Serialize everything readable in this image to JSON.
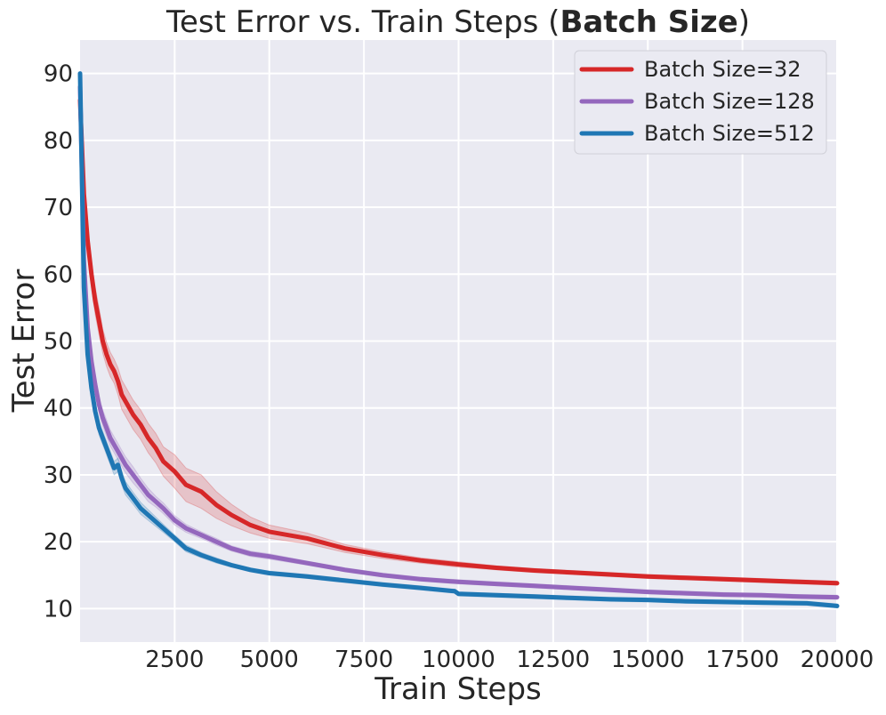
{
  "chart_data": {
    "type": "line",
    "title": "Test Error vs. Train Steps (",
    "title_bold": "Batch Size",
    "title_suffix": ")",
    "xlabel": "Train Steps",
    "ylabel": "Test Error",
    "xlim": [
      0,
      20000
    ],
    "ylim": [
      5,
      95
    ],
    "xticks": [
      2500,
      5000,
      7500,
      10000,
      12500,
      15000,
      17500,
      20000
    ],
    "xtick_labels": [
      "2500",
      "5000",
      "7500",
      "10000",
      "12500",
      "15000",
      "17500",
      "20000"
    ],
    "yticks": [
      10,
      20,
      30,
      40,
      50,
      60,
      70,
      80,
      90
    ],
    "ytick_labels": [
      "10",
      "20",
      "30",
      "40",
      "50",
      "60",
      "70",
      "80",
      "90"
    ],
    "grid": true,
    "background": "#EAEAF2",
    "legend_position": "top-right",
    "series": [
      {
        "name": "Batch Size=32",
        "color": "#D62728",
        "x": [
          0,
          100,
          200,
          300,
          400,
          500,
          600,
          700,
          800,
          900,
          1000,
          1100,
          1200,
          1400,
          1600,
          1800,
          2000,
          2200,
          2500,
          2800,
          3200,
          3600,
          4000,
          4500,
          5000,
          6000,
          7000,
          8000,
          9000,
          10000,
          11000,
          12000,
          13000,
          14000,
          15000,
          16000,
          17000,
          18000,
          19000,
          20000
        ],
        "y": [
          86,
          72,
          65,
          60,
          56,
          53,
          50,
          48,
          46.5,
          45.5,
          44,
          42,
          41,
          39,
          37.5,
          35.5,
          34,
          32,
          30.5,
          28.5,
          27.5,
          25.5,
          24,
          22.5,
          21.5,
          20.5,
          19,
          18,
          17.2,
          16.6,
          16.1,
          15.7,
          15.4,
          15.1,
          14.8,
          14.6,
          14.4,
          14.2,
          14,
          13.8
        ],
        "band": [
          0,
          1.5,
          2,
          2,
          2,
          2,
          1.8,
          1.8,
          1.8,
          1.8,
          2,
          2.2,
          2.2,
          2.2,
          2.2,
          2.2,
          2.2,
          2.2,
          2.5,
          2.5,
          2.5,
          2,
          1.6,
          1.2,
          1,
          0.8,
          0.6,
          0.5,
          0.4,
          0.4,
          0.3,
          0.3,
          0.3,
          0.3,
          0.3,
          0.3,
          0.3,
          0.3,
          0.3,
          0.3
        ]
      },
      {
        "name": "Batch Size=128",
        "color": "#9467BD",
        "x": [
          0,
          100,
          200,
          300,
          400,
          500,
          600,
          700,
          800,
          900,
          1000,
          1100,
          1200,
          1400,
          1600,
          1800,
          2000,
          2200,
          2500,
          2800,
          3200,
          3600,
          4000,
          4500,
          5000,
          6000,
          7000,
          8000,
          9000,
          10000,
          11000,
          12000,
          13000,
          14000,
          15000,
          16000,
          17000,
          18000,
          19000,
          20000
        ],
        "y": [
          88,
          62,
          52,
          47,
          43.5,
          40.5,
          38.5,
          37,
          35.5,
          34.5,
          33.5,
          32.5,
          31.5,
          30,
          28.5,
          27,
          26,
          25,
          23.2,
          22,
          21,
          20,
          19,
          18.2,
          17.8,
          16.8,
          15.8,
          15,
          14.4,
          14,
          13.7,
          13.4,
          13.1,
          12.8,
          12.5,
          12.3,
          12.1,
          12,
          11.8,
          11.7
        ],
        "band": [
          0,
          1.2,
          1.2,
          1.2,
          1.2,
          1.2,
          1.2,
          1.2,
          1.2,
          1.2,
          1.2,
          1.2,
          1.2,
          1.2,
          1,
          1,
          0.8,
          0.8,
          0.7,
          0.6,
          0.5,
          0.5,
          0.4,
          0.4,
          0.4,
          0.3,
          0.3,
          0.3,
          0.3,
          0.3,
          0.3,
          0.3,
          0.3,
          0.3,
          0.3,
          0.3,
          0.3,
          0.3,
          0.3,
          0.3
        ]
      },
      {
        "name": "Batch Size=512",
        "color": "#1F77B4",
        "x": [
          0,
          100,
          200,
          300,
          400,
          500,
          600,
          700,
          800,
          900,
          1000,
          1100,
          1200,
          1400,
          1600,
          1800,
          2000,
          2200,
          2500,
          2800,
          3200,
          3600,
          4000,
          4500,
          5000,
          6000,
          7000,
          8000,
          9000,
          9900,
          10000,
          11000,
          12000,
          13000,
          14000,
          15000,
          16000,
          17000,
          18000,
          19200,
          20000
        ],
        "y": [
          90,
          58,
          48,
          43,
          39.5,
          37,
          35.5,
          34,
          32.5,
          31,
          31.5,
          29.5,
          28,
          26.5,
          25,
          24,
          23,
          22,
          20.5,
          19,
          18,
          17.2,
          16.5,
          15.8,
          15.3,
          14.8,
          14.2,
          13.6,
          13.1,
          12.6,
          12.2,
          12,
          11.8,
          11.6,
          11.4,
          11.3,
          11.1,
          11,
          10.9,
          10.8,
          10.4
        ],
        "band": [
          0,
          1,
          1,
          1,
          1,
          1,
          1,
          1,
          1,
          1,
          1,
          1,
          1,
          0.9,
          0.9,
          0.8,
          0.7,
          0.6,
          0.5,
          0.5,
          0.4,
          0.4,
          0.3,
          0.3,
          0.3,
          0.3,
          0.3,
          0.3,
          0.3,
          0.3,
          0.3,
          0.3,
          0.3,
          0.3,
          0.3,
          0.3,
          0.3,
          0.3,
          0.3,
          0.3,
          0.3
        ]
      }
    ]
  }
}
